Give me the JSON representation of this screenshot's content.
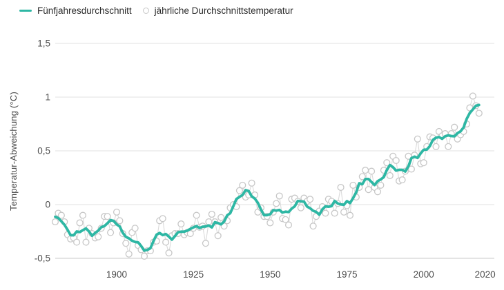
{
  "colors": {
    "five_year_line": "#2eb7a4",
    "annual_marker": "#c7c7c7",
    "annual_connector": "#dadada",
    "gridline": "#e0e0e0",
    "baseline": "#c9c9c9",
    "tick_text": "#4d4d4d",
    "axis_title_text": "#4a4a4a",
    "legend_text": "#2b2b2b",
    "background": "#ffffff"
  },
  "chart_data": {
    "type": "line",
    "ylabel": "Temperatur-Abweichung (°C)",
    "ylim": [
      -0.5,
      1.5
    ],
    "xlim": [
      1880,
      2023
    ],
    "grid": "horizontal",
    "legend_position": "top-left",
    "yticks": [
      {
        "value": 1.5,
        "label": "1,5"
      },
      {
        "value": 1,
        "label": "1"
      },
      {
        "value": 0.5,
        "label": "0,5"
      },
      {
        "value": 0,
        "label": "0"
      },
      {
        "value": -0.5,
        "label": "-0,5"
      }
    ],
    "xticks": [
      {
        "value": 1900,
        "label": "1900"
      },
      {
        "value": 1925,
        "label": "1925"
      },
      {
        "value": 1950,
        "label": "1950"
      },
      {
        "value": 1975,
        "label": "1975"
      },
      {
        "value": 2000,
        "label": "2000"
      },
      {
        "value": 2020,
        "label": "2020"
      }
    ],
    "years_start": 1880,
    "series": [
      {
        "name": "Fünfjahresdurchschnitt",
        "type": "smoothed-line",
        "smoothing_window": 5
      },
      {
        "name": "jährliche Durchschnittstemperatur",
        "type": "scatter",
        "values": [
          -0.16,
          -0.08,
          -0.1,
          -0.16,
          -0.28,
          -0.32,
          -0.31,
          -0.35,
          -0.17,
          -0.1,
          -0.35,
          -0.22,
          -0.27,
          -0.31,
          -0.3,
          -0.22,
          -0.11,
          -0.11,
          -0.26,
          -0.17,
          -0.07,
          -0.15,
          -0.27,
          -0.36,
          -0.46,
          -0.26,
          -0.22,
          -0.38,
          -0.42,
          -0.48,
          -0.43,
          -0.43,
          -0.35,
          -0.34,
          -0.15,
          -0.13,
          -0.35,
          -0.45,
          -0.29,
          -0.27,
          -0.27,
          -0.18,
          -0.28,
          -0.26,
          -0.27,
          -0.22,
          -0.1,
          -0.21,
          -0.2,
          -0.36,
          -0.16,
          -0.09,
          -0.16,
          -0.29,
          -0.12,
          -0.2,
          -0.15,
          -0.03,
          0.0,
          -0.02,
          0.13,
          0.18,
          0.07,
          0.09,
          0.2,
          0.09,
          -0.07,
          -0.03,
          -0.11,
          -0.11,
          -0.17,
          -0.07,
          0.01,
          0.08,
          -0.13,
          -0.14,
          -0.19,
          0.05,
          0.06,
          0.03,
          -0.03,
          0.06,
          0.03,
          0.05,
          -0.2,
          -0.11,
          -0.06,
          -0.02,
          -0.08,
          0.05,
          0.03,
          -0.08,
          0.01,
          0.16,
          -0.07,
          -0.01,
          -0.1,
          0.18,
          0.07,
          0.16,
          0.26,
          0.32,
          0.14,
          0.31,
          0.16,
          0.12,
          0.18,
          0.32,
          0.39,
          0.27,
          0.45,
          0.41,
          0.22,
          0.23,
          0.31,
          0.45,
          0.33,
          0.46,
          0.61,
          0.38,
          0.39,
          0.54,
          0.63,
          0.62,
          0.54,
          0.68,
          0.64,
          0.66,
          0.54,
          0.66,
          0.72,
          0.61,
          0.65,
          0.68,
          0.75,
          0.9,
          1.01,
          0.92,
          0.85
        ]
      }
    ]
  }
}
